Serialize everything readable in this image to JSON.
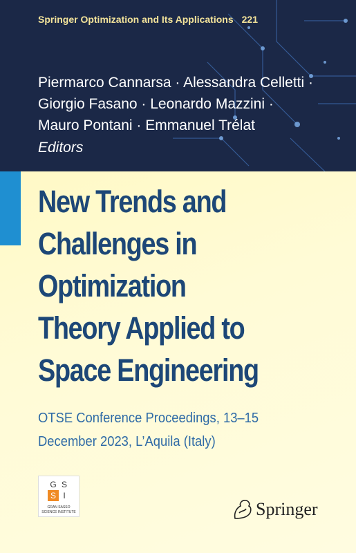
{
  "series": {
    "name": "Springer Optimization and Its Applications",
    "number": "221"
  },
  "editors": {
    "lines": [
      "Piermarco Cannarsa · Alessandra Celletti ·",
      "Giorgio Fasano · Leonardo Mazzini ·",
      "Mauro Pontani · Emmanuel Trélat"
    ],
    "label": "Editors"
  },
  "title": {
    "lines": [
      "New Trends and",
      "Challenges in",
      "Optimization",
      "Theory Applied to",
      "Space Engineering"
    ]
  },
  "subtitle": {
    "lines": [
      "OTSE Conference Proceedings, 13–15",
      "December 2023, L’Aquila (Italy)"
    ]
  },
  "institute_logo": {
    "letters": [
      "G",
      "S",
      "S",
      "I"
    ],
    "lines": [
      "GRAN SASSO",
      "SCIENCE INSTITUTE"
    ]
  },
  "publisher": "Springer"
}
